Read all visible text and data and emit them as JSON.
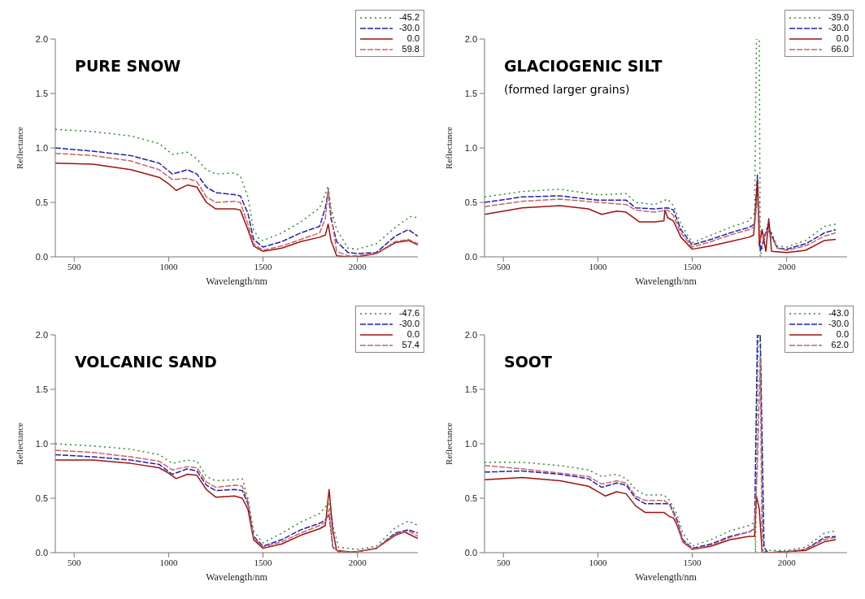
{
  "chart_data": [
    {
      "type": "line",
      "title": "PURE SNOW",
      "xlabel": "Wavelength/nm",
      "ylabel": "Reflectance",
      "xlim": [
        400,
        2320
      ],
      "xticks": [
        500,
        1000,
        1500,
        2000
      ],
      "ylim": [
        0,
        2
      ],
      "yticks": [
        {
          "value": 0,
          "label": "0.0"
        },
        {
          "value": 0.5,
          "label": "0.5"
        },
        {
          "value": 1,
          "label": "1.0"
        },
        {
          "value": 1.5,
          "label": "1.5"
        },
        {
          "value": 2,
          "label": "2.0"
        }
      ],
      "legend": "top right",
      "grid": false,
      "marker": "none",
      "series": [
        {
          "name": "-45.2",
          "color": "#2e8b2e",
          "line_style": "dotted",
          "x": [
            400,
            600,
            800,
            950,
            1020,
            1100,
            1150,
            1200,
            1250,
            1350,
            1380,
            1420,
            1450,
            1480,
            1500,
            1600,
            1700,
            1800,
            1830,
            1845,
            1860,
            1890,
            1950,
            2000,
            2100,
            2200,
            2280,
            2320
          ],
          "values": [
            1.17,
            1.15,
            1.11,
            1.04,
            0.94,
            0.96,
            0.9,
            0.8,
            0.76,
            0.77,
            0.74,
            0.55,
            0.25,
            0.16,
            0.15,
            0.22,
            0.32,
            0.45,
            0.58,
            0.65,
            0.45,
            0.25,
            0.08,
            0.07,
            0.12,
            0.27,
            0.37,
            0.36
          ]
        },
        {
          "name": "-30.0",
          "color": "#2020b0",
          "line_style": "dashed",
          "x": [
            400,
            600,
            800,
            950,
            1020,
            1100,
            1150,
            1200,
            1250,
            1350,
            1380,
            1420,
            1450,
            1500,
            1600,
            1700,
            1800,
            1830,
            1845,
            1860,
            1890,
            1950,
            2000,
            2100,
            2200,
            2270,
            2320
          ],
          "values": [
            1.0,
            0.97,
            0.93,
            0.86,
            0.76,
            0.8,
            0.76,
            0.64,
            0.59,
            0.57,
            0.56,
            0.4,
            0.16,
            0.09,
            0.14,
            0.22,
            0.28,
            0.45,
            0.6,
            0.35,
            0.14,
            0.04,
            0.03,
            0.04,
            0.19,
            0.25,
            0.19
          ]
        },
        {
          "name": "0.0",
          "color": "#a01010",
          "line_style": "solid",
          "x": [
            400,
            600,
            800,
            950,
            1000,
            1040,
            1100,
            1150,
            1200,
            1250,
            1350,
            1380,
            1420,
            1450,
            1500,
            1600,
            1700,
            1800,
            1830,
            1845,
            1860,
            1890,
            1950,
            2000,
            2100,
            2200,
            2270,
            2320
          ],
          "values": [
            0.86,
            0.85,
            0.8,
            0.73,
            0.67,
            0.61,
            0.66,
            0.64,
            0.5,
            0.44,
            0.44,
            0.43,
            0.25,
            0.1,
            0.05,
            0.08,
            0.14,
            0.18,
            0.2,
            0.3,
            0.15,
            0.01,
            0.0,
            0.0,
            0.03,
            0.13,
            0.15,
            0.11
          ]
        },
        {
          "name": "59.8",
          "color": "#c86464",
          "line_style": "dashed",
          "x": [
            400,
            600,
            800,
            950,
            1020,
            1100,
            1150,
            1200,
            1250,
            1350,
            1380,
            1420,
            1450,
            1500,
            1600,
            1700,
            1800,
            1830,
            1845,
            1860,
            1890,
            1950,
            2000,
            2100,
            2200,
            2270,
            2320
          ],
          "values": [
            0.95,
            0.93,
            0.88,
            0.8,
            0.71,
            0.72,
            0.69,
            0.55,
            0.5,
            0.51,
            0.5,
            0.3,
            0.12,
            0.06,
            0.1,
            0.16,
            0.22,
            0.35,
            0.62,
            0.4,
            0.05,
            0.01,
            0.01,
            0.03,
            0.14,
            0.16,
            0.12
          ]
        }
      ]
    },
    {
      "type": "line",
      "title": "GLACIOGENIC SILT",
      "subtitle": "(formed larger grains)",
      "xlabel": "Wavelength/nm",
      "ylabel": "Reflectance",
      "xlim": [
        400,
        2320
      ],
      "xticks": [
        500,
        1000,
        1500,
        2000
      ],
      "ylim": [
        0,
        2
      ],
      "yticks": [
        {
          "value": 0,
          "label": "0.0"
        },
        {
          "value": 0.5,
          "label": "0.5"
        },
        {
          "value": 1,
          "label": "1.0"
        },
        {
          "value": 1.5,
          "label": "1.5"
        },
        {
          "value": 2,
          "label": "2.0"
        }
      ],
      "legend": "top right",
      "grid": false,
      "marker": "none",
      "series": [
        {
          "name": "-39.0",
          "color": "#2e8b2e",
          "line_style": "dotted",
          "x": [
            400,
            600,
            800,
            1000,
            1150,
            1200,
            1300,
            1370,
            1400,
            1440,
            1500,
            1600,
            1700,
            1800,
            1830,
            1840,
            1855,
            1860,
            1900,
            1950,
            2000,
            2100,
            2200,
            2260
          ],
          "values": [
            0.55,
            0.6,
            0.62,
            0.57,
            0.58,
            0.5,
            0.48,
            0.53,
            0.47,
            0.3,
            0.13,
            0.2,
            0.27,
            0.33,
            0.4,
            2.0,
            2.0,
            0.0,
            0.3,
            0.1,
            0.09,
            0.15,
            0.28,
            0.3
          ]
        },
        {
          "name": "-30.0",
          "color": "#2020b0",
          "line_style": "dashed",
          "x": [
            400,
            600,
            800,
            1000,
            1150,
            1200,
            1300,
            1370,
            1400,
            1440,
            1500,
            1600,
            1700,
            1800,
            1830,
            1845,
            1860,
            1900,
            1950,
            2000,
            2100,
            2200,
            2260
          ],
          "values": [
            0.5,
            0.55,
            0.56,
            0.52,
            0.52,
            0.45,
            0.44,
            0.45,
            0.43,
            0.25,
            0.11,
            0.16,
            0.22,
            0.27,
            0.3,
            0.75,
            0.05,
            0.28,
            0.08,
            0.07,
            0.12,
            0.22,
            0.25
          ]
        },
        {
          "name": "0.0",
          "color": "#a01010",
          "line_style": "solid",
          "x": [
            400,
            600,
            800,
            950,
            1020,
            1100,
            1150,
            1220,
            1300,
            1350,
            1355,
            1370,
            1400,
            1440,
            1500,
            1600,
            1700,
            1800,
            1825,
            1835,
            1845,
            1855,
            1870,
            1890,
            1905,
            1920,
            2000,
            2100,
            2200,
            2260
          ],
          "values": [
            0.39,
            0.45,
            0.47,
            0.44,
            0.39,
            0.42,
            0.41,
            0.32,
            0.32,
            0.33,
            0.43,
            0.36,
            0.33,
            0.18,
            0.07,
            0.1,
            0.14,
            0.18,
            0.2,
            0.43,
            0.7,
            0.1,
            0.25,
            0.05,
            0.35,
            0.05,
            0.04,
            0.06,
            0.15,
            0.16
          ]
        },
        {
          "name": "66.0",
          "color": "#c86464",
          "line_style": "dashed",
          "x": [
            400,
            600,
            800,
            1000,
            1150,
            1200,
            1300,
            1370,
            1400,
            1440,
            1500,
            1600,
            1700,
            1800,
            1830,
            1845,
            1860,
            1900,
            1950,
            2000,
            2100,
            2200,
            2260
          ],
          "values": [
            0.46,
            0.51,
            0.53,
            0.5,
            0.48,
            0.43,
            0.41,
            0.43,
            0.38,
            0.22,
            0.09,
            0.14,
            0.2,
            0.25,
            0.28,
            0.55,
            0.15,
            0.25,
            0.08,
            0.06,
            0.1,
            0.19,
            0.22
          ]
        }
      ]
    },
    {
      "type": "line",
      "title": "VOLCANIC SAND",
      "xlabel": "Wavelength/nm",
      "ylabel": "Reflectance",
      "xlim": [
        400,
        2320
      ],
      "xticks": [
        500,
        1000,
        1500,
        2000
      ],
      "ylim": [
        0,
        2
      ],
      "yticks": [
        {
          "value": 0,
          "label": "0.0"
        },
        {
          "value": 0.5,
          "label": "0.5"
        },
        {
          "value": 1,
          "label": "1.0"
        },
        {
          "value": 1.5,
          "label": "1.5"
        },
        {
          "value": 2,
          "label": "2.0"
        }
      ],
      "legend": "top right",
      "grid": false,
      "marker": "none",
      "series": [
        {
          "name": "-47.6",
          "color": "#2e8b2e",
          "line_style": "dotted",
          "x": [
            400,
            600,
            800,
            950,
            1020,
            1100,
            1150,
            1200,
            1250,
            1350,
            1390,
            1420,
            1450,
            1500,
            1600,
            1700,
            1800,
            1830,
            1850,
            1870,
            1900,
            2000,
            2100,
            2200,
            2270,
            2320
          ],
          "values": [
            1.0,
            0.98,
            0.95,
            0.9,
            0.82,
            0.85,
            0.84,
            0.7,
            0.66,
            0.67,
            0.68,
            0.5,
            0.2,
            0.09,
            0.18,
            0.28,
            0.36,
            0.42,
            0.45,
            0.25,
            0.05,
            0.03,
            0.06,
            0.23,
            0.29,
            0.25
          ]
        },
        {
          "name": "-30.0",
          "color": "#2020b0",
          "line_style": "dashed",
          "x": [
            400,
            600,
            800,
            950,
            1020,
            1100,
            1150,
            1200,
            1250,
            1350,
            1390,
            1420,
            1450,
            1500,
            1600,
            1700,
            1800,
            1830,
            1850,
            1870,
            1900,
            2000,
            2100,
            2200,
            2270,
            2320
          ],
          "values": [
            0.9,
            0.88,
            0.85,
            0.81,
            0.72,
            0.77,
            0.75,
            0.62,
            0.57,
            0.58,
            0.57,
            0.45,
            0.15,
            0.06,
            0.12,
            0.21,
            0.27,
            0.3,
            0.35,
            0.05,
            0.01,
            0.01,
            0.04,
            0.18,
            0.21,
            0.18
          ]
        },
        {
          "name": "0.0",
          "color": "#a01010",
          "line_style": "solid",
          "x": [
            400,
            600,
            800,
            950,
            1000,
            1040,
            1100,
            1150,
            1200,
            1250,
            1350,
            1390,
            1420,
            1450,
            1500,
            1600,
            1700,
            1800,
            1830,
            1850,
            1870,
            1890,
            1950,
            2000,
            2100,
            2200,
            2250,
            2320
          ],
          "values": [
            0.85,
            0.85,
            0.82,
            0.78,
            0.73,
            0.68,
            0.72,
            0.71,
            0.58,
            0.51,
            0.52,
            0.5,
            0.4,
            0.12,
            0.04,
            0.08,
            0.16,
            0.22,
            0.25,
            0.58,
            0.2,
            0.02,
            0.01,
            0.01,
            0.04,
            0.16,
            0.19,
            0.13
          ]
        },
        {
          "name": "57.4",
          "color": "#c86464",
          "line_style": "dashed",
          "x": [
            400,
            600,
            800,
            950,
            1020,
            1100,
            1150,
            1200,
            1250,
            1350,
            1390,
            1420,
            1450,
            1500,
            1600,
            1700,
            1800,
            1830,
            1850,
            1870,
            1900,
            2000,
            2100,
            2200,
            2270,
            2320
          ],
          "values": [
            0.94,
            0.92,
            0.88,
            0.84,
            0.76,
            0.79,
            0.78,
            0.65,
            0.6,
            0.62,
            0.61,
            0.47,
            0.14,
            0.05,
            0.1,
            0.18,
            0.25,
            0.28,
            0.4,
            0.05,
            0.01,
            0.01,
            0.04,
            0.17,
            0.2,
            0.15
          ]
        }
      ]
    },
    {
      "type": "line",
      "title": "SOOT",
      "xlabel": "Wavelength/nm",
      "ylabel": "Reflectance",
      "xlim": [
        400,
        2320
      ],
      "xticks": [
        500,
        1000,
        1500,
        2000
      ],
      "ylim": [
        0,
        2
      ],
      "yticks": [
        {
          "value": 0,
          "label": "0.0"
        },
        {
          "value": 0.5,
          "label": "0.5"
        },
        {
          "value": 1,
          "label": "1.0"
        },
        {
          "value": 1.5,
          "label": "1.5"
        },
        {
          "value": 2,
          "label": "2.0"
        }
      ],
      "legend": "top right",
      "grid": false,
      "marker": "none",
      "series": [
        {
          "name": "-43.0",
          "color": "#2e8b2e",
          "line_style": "dotted",
          "x": [
            400,
            600,
            800,
            950,
            1020,
            1100,
            1150,
            1200,
            1250,
            1350,
            1380,
            1420,
            1450,
            1500,
            1600,
            1700,
            1800,
            1830,
            1835,
            1850,
            1860,
            1875,
            1900,
            2000,
            2100,
            2200,
            2260
          ],
          "values": [
            0.83,
            0.83,
            0.8,
            0.76,
            0.7,
            0.72,
            0.68,
            0.58,
            0.53,
            0.53,
            0.48,
            0.35,
            0.18,
            0.06,
            0.12,
            0.2,
            0.25,
            0.28,
            0.0,
            2.0,
            2.0,
            0.0,
            0.02,
            0.02,
            0.05,
            0.18,
            0.2
          ]
        },
        {
          "name": "-30.0",
          "color": "#2020b0",
          "line_style": "dashed",
          "x": [
            400,
            600,
            800,
            950,
            1020,
            1100,
            1150,
            1200,
            1250,
            1350,
            1380,
            1420,
            1450,
            1500,
            1600,
            1700,
            1800,
            1830,
            1845,
            1860,
            1880,
            1900,
            2000,
            2100,
            2200,
            2260
          ],
          "values": [
            0.74,
            0.75,
            0.72,
            0.68,
            0.6,
            0.64,
            0.62,
            0.5,
            0.45,
            0.45,
            0.45,
            0.3,
            0.12,
            0.04,
            0.08,
            0.15,
            0.19,
            0.22,
            2.0,
            2.0,
            0.05,
            0.0,
            0.01,
            0.03,
            0.14,
            0.15
          ]
        },
        {
          "name": "0.0",
          "color": "#a01010",
          "line_style": "solid",
          "x": [
            400,
            600,
            800,
            950,
            1000,
            1040,
            1100,
            1150,
            1200,
            1250,
            1350,
            1380,
            1400,
            1420,
            1450,
            1500,
            1600,
            1700,
            1800,
            1830,
            1840,
            1855,
            1870,
            1900,
            2000,
            2100,
            2200,
            2260
          ],
          "values": [
            0.67,
            0.69,
            0.66,
            0.61,
            0.56,
            0.52,
            0.56,
            0.54,
            0.43,
            0.37,
            0.37,
            0.33,
            0.32,
            0.25,
            0.1,
            0.03,
            0.06,
            0.12,
            0.15,
            0.15,
            0.52,
            0.4,
            0.0,
            0.0,
            0.01,
            0.02,
            0.1,
            0.12
          ]
        },
        {
          "name": "62.0",
          "color": "#c86464",
          "line_style": "dashed",
          "x": [
            400,
            600,
            800,
            950,
            1020,
            1100,
            1150,
            1200,
            1250,
            1350,
            1380,
            1420,
            1450,
            1500,
            1600,
            1700,
            1800,
            1830,
            1845,
            1860,
            1870,
            1900,
            2000,
            2100,
            2200,
            2260
          ],
          "values": [
            0.8,
            0.77,
            0.73,
            0.7,
            0.63,
            0.66,
            0.64,
            0.52,
            0.48,
            0.48,
            0.44,
            0.28,
            0.11,
            0.03,
            0.07,
            0.14,
            0.19,
            0.22,
            0.8,
            1.8,
            0.0,
            0.0,
            0.01,
            0.03,
            0.12,
            0.14
          ]
        }
      ]
    }
  ]
}
